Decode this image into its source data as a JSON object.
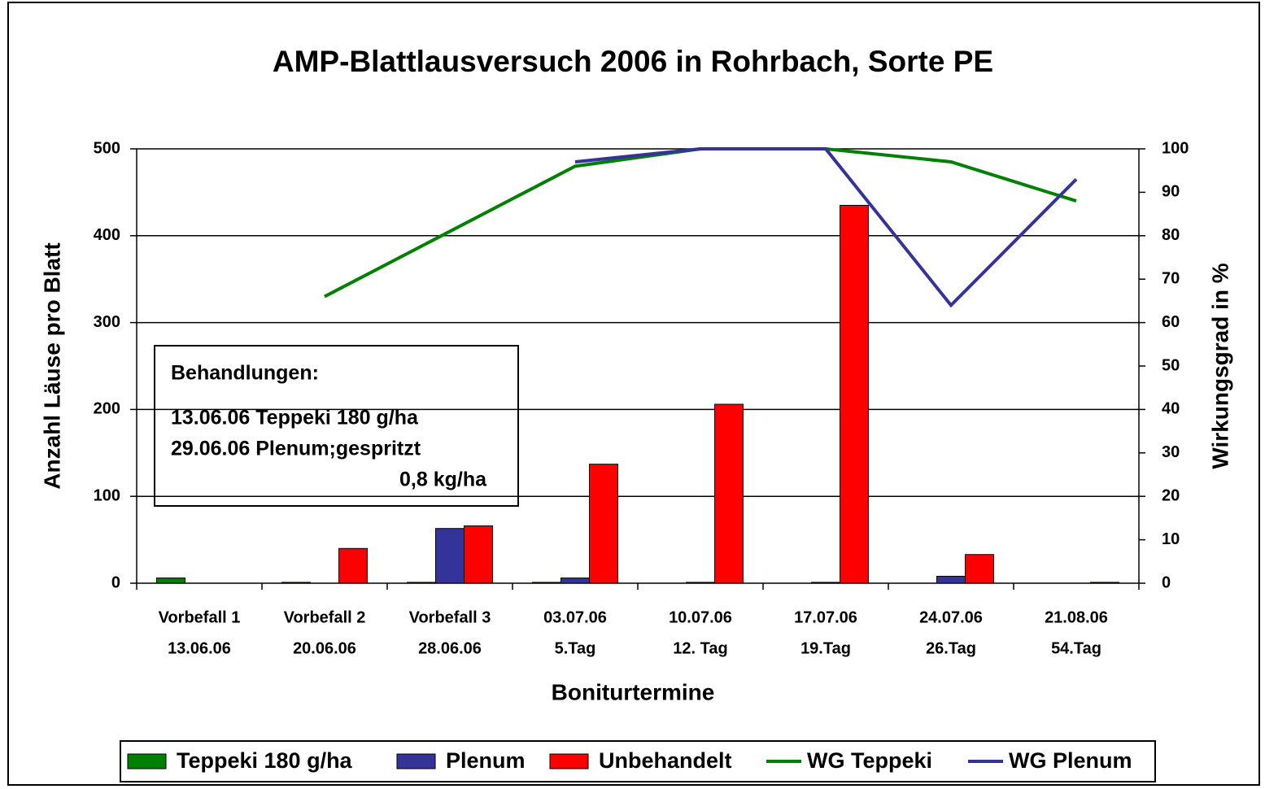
{
  "chart_data": {
    "type": "bar",
    "title": "AMP-Blattlausversuch 2006 in Rohrbach, Sorte PE",
    "x_label": "Boniturtermine",
    "y_label": "Anzahl Läuse pro Blatt",
    "y2_label": "Wirkungsgrad in %",
    "categories": [
      [
        "Vorbefall 1",
        "13.06.06"
      ],
      [
        "Vorbefall 2",
        "20.06.06"
      ],
      [
        "Vorbefall 3",
        "28.06.06"
      ],
      [
        "03.07.06",
        "5.Tag"
      ],
      [
        "10.07.06",
        "12. Tag"
      ],
      [
        "17.07.06",
        "19.Tag"
      ],
      [
        "24.07.06",
        "26.Tag"
      ],
      [
        "21.08.06",
        "54.Tag"
      ]
    ],
    "series": [
      {
        "name": "Teppeki 180 g/ha",
        "type": "bar",
        "color": "#008000",
        "values": [
          6,
          1,
          1,
          1,
          null,
          null,
          null,
          null
        ]
      },
      {
        "name": "Plenum",
        "type": "bar",
        "color": "#333399",
        "values": [
          null,
          null,
          63,
          6,
          1,
          1,
          8,
          null
        ]
      },
      {
        "name": "Unbehandelt",
        "type": "bar",
        "color": "#ff0000",
        "values": [
          null,
          40,
          66,
          137,
          206,
          435,
          33,
          1
        ]
      },
      {
        "name": "WG Teppeki",
        "type": "line",
        "axis": "y2",
        "color": "#008000",
        "values": [
          null,
          66,
          81,
          96,
          100,
          100,
          97,
          88
        ]
      },
      {
        "name": "WG Plenum",
        "type": "line",
        "axis": "y2",
        "color": "#333399",
        "values": [
          null,
          null,
          null,
          97,
          100,
          100,
          64,
          93
        ]
      }
    ],
    "ylim": [
      0,
      500
    ],
    "yticks": [
      0,
      100,
      200,
      300,
      400,
      500
    ],
    "y2lim": [
      0,
      100
    ],
    "y2ticks": [
      0,
      10,
      20,
      30,
      40,
      50,
      60,
      70,
      80,
      90,
      100
    ],
    "grid": true,
    "legend": "bottom",
    "annotation": {
      "heading": "Behandlungen:",
      "lines": [
        "13.06.06 Teppeki 180 g/ha",
        "29.06.06 Plenum;gespritzt",
        "0,8 kg/ha"
      ]
    }
  }
}
